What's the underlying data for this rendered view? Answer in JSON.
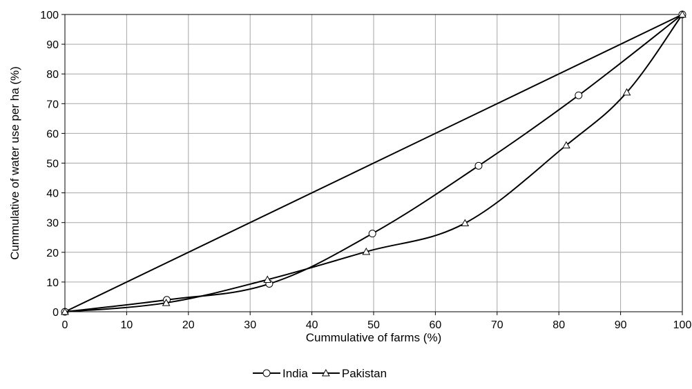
{
  "chart_data": {
    "type": "line",
    "title": "",
    "xlabel": "Cummulative of farms (%)",
    "ylabel": "Cummulative of water use per ha (%)",
    "xlim": [
      0,
      100
    ],
    "ylim": [
      0,
      100
    ],
    "x_ticks": [
      "0",
      "10",
      "20",
      "30",
      "40",
      "50",
      "60",
      "70",
      "80",
      "90",
      "100"
    ],
    "y_ticks": [
      "0",
      "10",
      "20",
      "30",
      "40",
      "50",
      "60",
      "70",
      "80",
      "90",
      "100"
    ],
    "grid": true,
    "legend_position": "bottom-center",
    "series": [
      {
        "name": "",
        "marker": "none",
        "x": [
          0,
          100
        ],
        "y": [
          0,
          100
        ]
      },
      {
        "name": "India",
        "marker": "circle",
        "x": [
          0,
          16.5,
          33.1,
          49.8,
          67.0,
          83.2,
          100
        ],
        "y": [
          0,
          4.0,
          9.4,
          26.3,
          49.1,
          72.8,
          100
        ]
      },
      {
        "name": "Pakistan",
        "marker": "triangle",
        "x": [
          0,
          16.4,
          32.8,
          48.8,
          64.8,
          81.2,
          91.0,
          100
        ],
        "y": [
          0,
          3.0,
          10.8,
          20.2,
          29.8,
          56.0,
          73.8,
          100
        ]
      }
    ]
  }
}
